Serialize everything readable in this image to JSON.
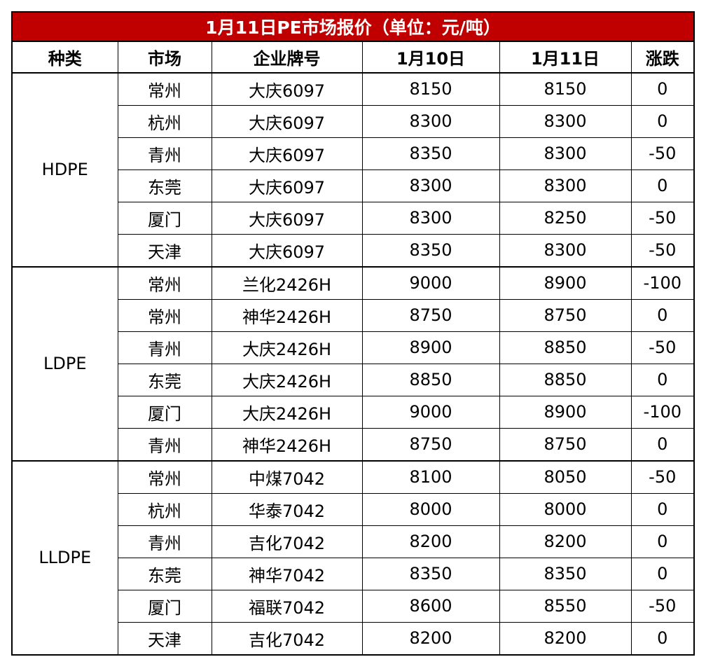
{
  "title": "1月11日PE市场报价（单位：元/吨）",
  "headers": [
    "种类",
    "市场",
    "企业牌号",
    "1月10日",
    "1月11日",
    "涨跌"
  ],
  "groups": [
    {
      "type": "HDPE",
      "rows": [
        [
          "常州",
          "大庆6097",
          "8150",
          "8150",
          "0"
        ],
        [
          "杭州",
          "大庆6097",
          "8300",
          "8300",
          "0"
        ],
        [
          "青州",
          "大庆6097",
          "8350",
          "8300",
          "-50"
        ],
        [
          "东莞",
          "大庆6097",
          "8300",
          "8300",
          "0"
        ],
        [
          "厦门",
          "大庆6097",
          "8300",
          "8250",
          "-50"
        ],
        [
          "天津",
          "大庆6097",
          "8350",
          "8300",
          "-50"
        ]
      ]
    },
    {
      "type": "LDPE",
      "rows": [
        [
          "常州",
          "兰化2426H",
          "9000",
          "8900",
          "-100"
        ],
        [
          "常州",
          "神华2426H",
          "8750",
          "8750",
          "0"
        ],
        [
          "青州",
          "大庆2426H",
          "8900",
          "8850",
          "-50"
        ],
        [
          "东莞",
          "大庆2426H",
          "8850",
          "8850",
          "0"
        ],
        [
          "厦门",
          "大庆2426H",
          "9000",
          "8900",
          "-100"
        ],
        [
          "青州",
          "神华2426H",
          "8750",
          "8750",
          "0"
        ]
      ]
    },
    {
      "type": "LLDPE",
      "rows": [
        [
          "常州",
          "中煤7042",
          "8100",
          "8050",
          "-50"
        ],
        [
          "杭州",
          "华泰7042",
          "8000",
          "8000",
          "0"
        ],
        [
          "青州",
          "吉化7042",
          "8200",
          "8200",
          "0"
        ],
        [
          "东莞",
          "神华7042",
          "8350",
          "8350",
          "0"
        ],
        [
          "厦门",
          "福联7042",
          "8600",
          "8550",
          "-50"
        ],
        [
          "天津",
          "吉化7042",
          "8200",
          "8200",
          "0"
        ]
      ]
    }
  ],
  "colors": {
    "banner_bg": "#c00000",
    "banner_text": "#ffffff",
    "border": "#000000"
  }
}
